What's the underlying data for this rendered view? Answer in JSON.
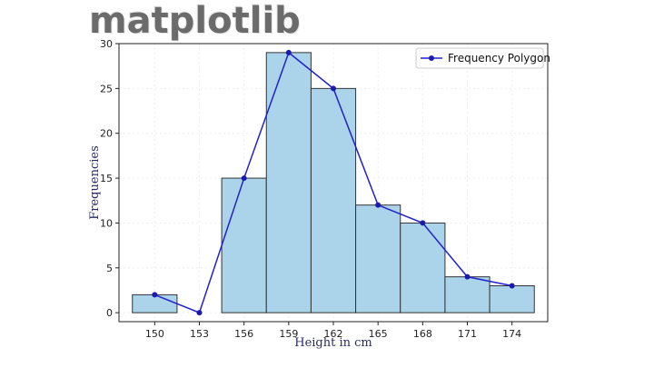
{
  "logo_text": "matplotlib",
  "chart_data": {
    "type": "bar",
    "title": "",
    "xlabel": "Height in cm",
    "ylabel": "Frequencies",
    "x_ticks": [
      150,
      153,
      156,
      159,
      162,
      165,
      168,
      171,
      174
    ],
    "y_ticks": [
      0,
      5,
      10,
      15,
      20,
      25,
      30
    ],
    "xlim": [
      147.6,
      176.4
    ],
    "ylim": [
      -1,
      30
    ],
    "bin_edges": [
      148.5,
      151.5,
      154.5,
      157.5,
      160.5,
      163.5,
      166.5,
      169.5,
      172.5,
      175.5
    ],
    "values": [
      2,
      0,
      15,
      29,
      25,
      12,
      10,
      4,
      3
    ],
    "bar_color": "#abd4ea",
    "bar_edge_color": "#333333",
    "series": [
      {
        "name": "Frequency Polygon",
        "type": "line",
        "color": "#2222cc",
        "x": [
          150,
          153,
          156,
          159,
          162,
          165,
          168,
          171,
          174
        ],
        "y": [
          2,
          0,
          15,
          29,
          25,
          12,
          10,
          4,
          3
        ]
      }
    ],
    "legend_position": "upper-right",
    "grid": true
  }
}
